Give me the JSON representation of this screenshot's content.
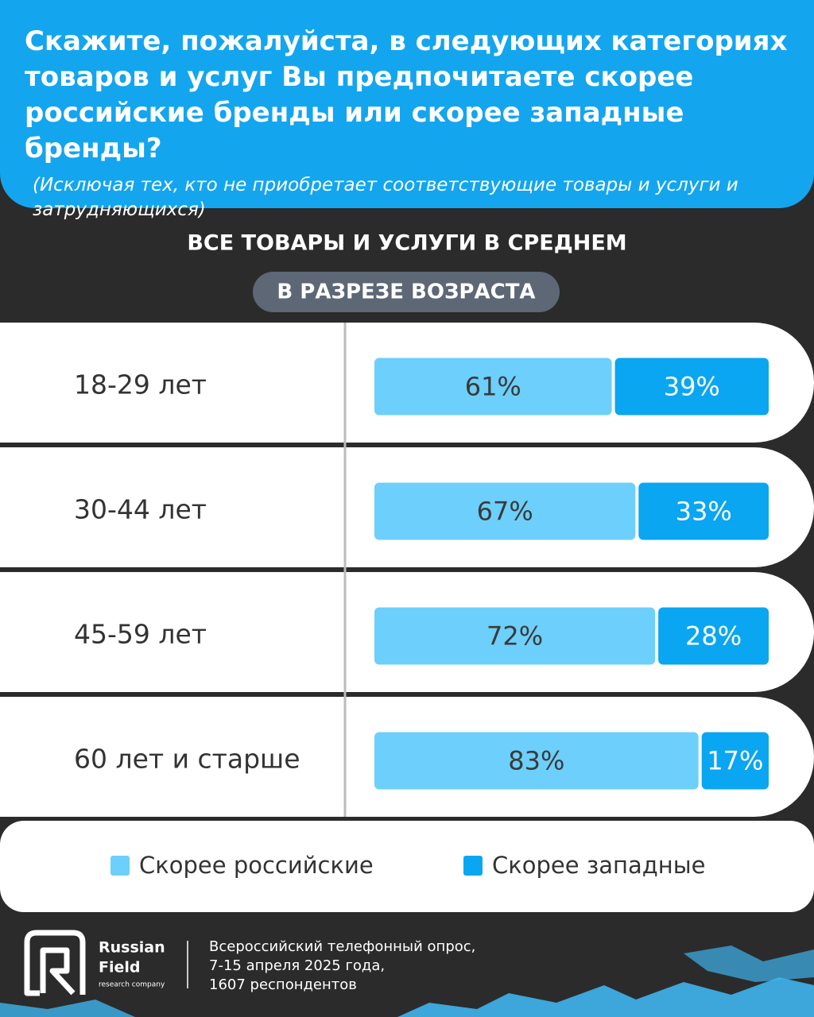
{
  "chart_data": {
    "type": "bar",
    "orientation": "horizontal",
    "stacked": true,
    "title": "Скажите, пожалуйста, в следующих категориях товаров и услуг Вы предпочитаете скорее российские бренды или скорее западные бренды?",
    "subtitle": "(Исключая тех, кто не приобретает соответствующие товары и  услуги и затрудняющихся)",
    "heading": "ВСЕ ТОВАРЫ И УСЛУГИ В СРЕДНЕМ",
    "subheading": "В РАЗРЕЗЕ ВОЗРАСТА",
    "categories": [
      "18-29 лет",
      "30-44 лет",
      "45-59 лет",
      "60 лет и старше"
    ],
    "xlim": [
      0,
      100
    ],
    "series": [
      {
        "name": "Скорее российские",
        "color": "#6dcffb",
        "values": [
          61,
          67,
          72,
          83
        ],
        "value_labels": [
          "61%",
          "67%",
          "72%",
          "83%"
        ]
      },
      {
        "name": "Скорее западные",
        "color": "#0aa6f2",
        "values": [
          39,
          33,
          28,
          17
        ],
        "value_labels": [
          "39%",
          "33%",
          "28%",
          "17%"
        ]
      }
    ]
  },
  "footer": {
    "brand": [
      "Russian",
      "Field"
    ],
    "brand_sub": "research company",
    "note": [
      "Всероссийский телефонный опрос,",
      "7-15 апреля 2025 года,",
      "1607 респондентов"
    ]
  }
}
